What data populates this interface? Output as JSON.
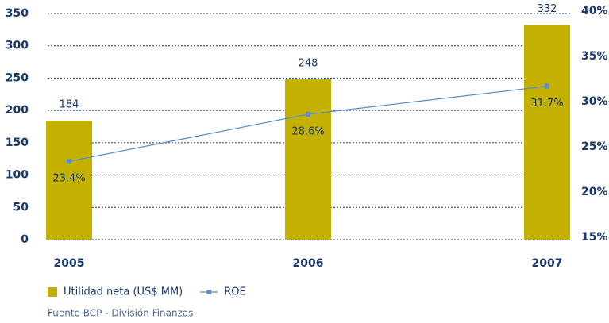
{
  "chart_data": {
    "type": "bar_line",
    "categories": [
      "2005",
      "2006",
      "2007"
    ],
    "series": [
      {
        "name": "Utilidad neta (US$ MM)",
        "type": "bar",
        "color": "#c4b000",
        "values": [
          184,
          248,
          332
        ]
      },
      {
        "name": "ROE",
        "type": "line",
        "axis": "y2",
        "color": "#5b8fc9",
        "values": [
          23.4,
          28.6,
          31.7
        ],
        "value_labels": [
          "23.4%",
          "28.6%",
          "31.7%"
        ]
      }
    ],
    "ylim": [
      0,
      350
    ],
    "yticks": [
      0,
      50,
      100,
      150,
      200,
      250,
      300,
      350
    ],
    "y2lim": [
      15,
      40
    ],
    "y2ticks": [
      {
        "value": 15,
        "label": "15%"
      },
      {
        "value": 20,
        "label": "20%"
      },
      {
        "value": 25,
        "label": "25%"
      },
      {
        "value": 30,
        "label": "30%"
      },
      {
        "value": 35,
        "label": "35%"
      },
      {
        "value": 40,
        "label": "40%"
      }
    ],
    "grid": true,
    "legend": "bottom-left",
    "source": "Fuente BCP - División Finanzas"
  }
}
